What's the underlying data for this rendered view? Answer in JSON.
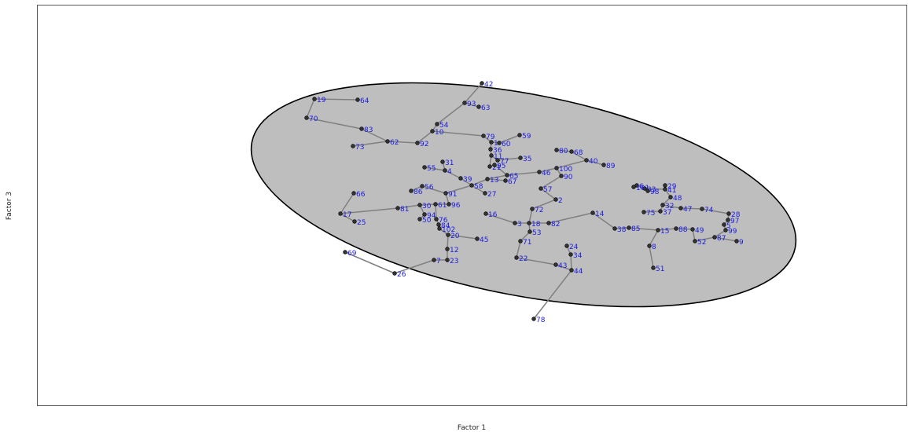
{
  "chart_data": {
    "type": "scatter",
    "x_label": "Factor 1",
    "y_label": "Factor 3",
    "xlim": [
      47,
      1154
    ],
    "ylim": [
      -517,
      -6
    ],
    "labels": [
      "42",
      "93",
      "63",
      "19",
      "64",
      "70",
      "83",
      "62",
      "73",
      "92",
      "54",
      "10",
      "79",
      "1",
      "60",
      "59",
      "36",
      "11",
      "77",
      "35",
      "21",
      "95",
      "80",
      "68",
      "40",
      "89",
      "100",
      "46",
      "90",
      "65",
      "13",
      "67",
      "31",
      "55",
      "4",
      "39",
      "58",
      "56",
      "86",
      "91",
      "27",
      "57",
      "2",
      "30",
      "61",
      "96",
      "81",
      "66",
      "17",
      "25",
      "94",
      "50",
      "76",
      "84",
      "102",
      "20",
      "45",
      "16",
      "72",
      "3",
      "18",
      "82",
      "53",
      "71",
      "22",
      "43",
      "44",
      "24",
      "34",
      "12",
      "7",
      "23",
      "69",
      "26",
      "78",
      "14",
      "38",
      "85",
      "15",
      "88",
      "49",
      "52",
      "87",
      "9",
      "8",
      "51",
      "75",
      "37",
      "32",
      "47",
      "74",
      "48",
      "41",
      "29",
      "33",
      "6",
      "101",
      "98",
      "28",
      "97",
      "5",
      "99"
    ],
    "x": [
      613,
      591,
      609,
      400,
      455,
      390,
      460,
      493,
      449,
      531,
      556,
      550,
      615,
      625,
      635,
      661,
      624,
      625,
      633,
      662,
      623,
      629,
      708,
      727,
      746,
      768,
      708,
      686,
      714,
      645,
      620,
      643,
      563,
      540,
      566,
      586,
      600,
      537,
      523,
      567,
      617,
      688,
      707,
      534,
      554,
      571,
      506,
      450,
      433,
      451,
      540,
      534,
      555,
      558,
      559,
      570,
      607,
      618,
      677,
      655,
      673,
      698,
      674,
      662,
      657,
      707,
      727,
      721,
      726,
      569,
      552,
      569,
      439,
      502,
      679,
      754,
      782,
      800,
      837,
      860,
      881,
      884,
      909,
      937,
      826,
      831,
      819,
      840,
      843,
      866,
      893,
      853,
      846,
      846,
      820,
      810,
      806,
      824,
      927,
      926,
      921,
      923
    ],
    "y": [
      -106,
      -131,
      -136,
      -126,
      -127,
      -150,
      -164,
      -180,
      -186,
      -182,
      -158,
      -167,
      -173,
      -181,
      -182,
      -172,
      -190,
      -198,
      -204,
      -201,
      -212,
      -210,
      -191,
      -193,
      -204,
      -210,
      -214,
      -219,
      -224,
      -223,
      -228,
      -230,
      -206,
      -213,
      -217,
      -227,
      -236,
      -237,
      -243,
      -246,
      -246,
      -240,
      -254,
      -261,
      -260,
      -260,
      -265,
      -246,
      -272,
      -282,
      -273,
      -279,
      -279,
      -286,
      -291,
      -299,
      -304,
      -272,
      -266,
      -284,
      -284,
      -284,
      -295,
      -307,
      -328,
      -337,
      -344,
      -313,
      -324,
      -317,
      -331,
      -331,
      -321,
      -348,
      -406,
      -271,
      -291,
      -290,
      -293,
      -291,
      -292,
      -307,
      -302,
      -307,
      -313,
      -341,
      -270,
      -269,
      -261,
      -265,
      -266,
      -251,
      -241,
      -236,
      -240,
      -236,
      -238,
      -243,
      -272,
      -280,
      -286,
      -293
    ],
    "edges": [
      [
        0,
        1
      ],
      [
        1,
        2
      ],
      [
        1,
        10
      ],
      [
        10,
        11
      ],
      [
        11,
        9
      ],
      [
        9,
        7
      ],
      [
        7,
        6
      ],
      [
        7,
        8
      ],
      [
        6,
        5
      ],
      [
        5,
        3
      ],
      [
        3,
        4
      ],
      [
        11,
        12
      ],
      [
        12,
        13
      ],
      [
        13,
        14
      ],
      [
        14,
        15
      ],
      [
        13,
        16
      ],
      [
        16,
        17
      ],
      [
        17,
        18
      ],
      [
        18,
        19
      ],
      [
        17,
        20
      ],
      [
        20,
        21
      ],
      [
        21,
        29
      ],
      [
        29,
        27
      ],
      [
        27,
        26
      ],
      [
        26,
        24
      ],
      [
        22,
        23
      ],
      [
        23,
        24
      ],
      [
        24,
        25
      ],
      [
        26,
        28
      ],
      [
        28,
        41
      ],
      [
        41,
        42
      ],
      [
        42,
        58
      ],
      [
        58,
        60
      ],
      [
        60,
        59
      ],
      [
        59,
        57
      ],
      [
        60,
        61
      ],
      [
        61,
        75
      ],
      [
        75,
        76
      ],
      [
        76,
        77
      ],
      [
        77,
        78
      ],
      [
        78,
        79
      ],
      [
        79,
        80
      ],
      [
        80,
        81
      ],
      [
        81,
        82
      ],
      [
        82,
        83
      ],
      [
        82,
        101
      ],
      [
        101,
        100
      ],
      [
        100,
        99
      ],
      [
        99,
        98
      ],
      [
        98,
        90
      ],
      [
        90,
        89
      ],
      [
        89,
        88
      ],
      [
        88,
        87
      ],
      [
        87,
        86
      ],
      [
        88,
        91
      ],
      [
        91,
        92
      ],
      [
        92,
        93
      ],
      [
        92,
        94
      ],
      [
        94,
        97
      ],
      [
        94,
        95
      ],
      [
        95,
        96
      ],
      [
        78,
        84
      ],
      [
        84,
        85
      ],
      [
        60,
        62
      ],
      [
        62,
        63
      ],
      [
        63,
        64
      ],
      [
        64,
        65
      ],
      [
        65,
        66
      ],
      [
        66,
        68
      ],
      [
        68,
        67
      ],
      [
        66,
        74
      ],
      [
        29,
        30
      ],
      [
        30,
        31
      ],
      [
        30,
        36
      ],
      [
        36,
        35
      ],
      [
        35,
        34
      ],
      [
        34,
        32
      ],
      [
        34,
        33
      ],
      [
        36,
        40
      ],
      [
        36,
        39
      ],
      [
        39,
        37
      ],
      [
        37,
        38
      ],
      [
        39,
        45
      ],
      [
        45,
        44
      ],
      [
        44,
        43
      ],
      [
        43,
        46
      ],
      [
        46,
        48
      ],
      [
        48,
        47
      ],
      [
        48,
        49
      ],
      [
        43,
        50
      ],
      [
        50,
        51
      ],
      [
        44,
        52
      ],
      [
        52,
        53
      ],
      [
        53,
        54
      ],
      [
        54,
        55
      ],
      [
        55,
        56
      ],
      [
        55,
        69
      ],
      [
        69,
        71
      ],
      [
        71,
        70
      ],
      [
        70,
        73
      ],
      [
        73,
        72
      ]
    ],
    "ellipse": {
      "cx": 666,
      "cy": -248,
      "rx": 352,
      "ry": 128,
      "angle": -11,
      "fill": "#bebebe"
    },
    "point_color": "#333333",
    "edge_color": "#808080"
  }
}
